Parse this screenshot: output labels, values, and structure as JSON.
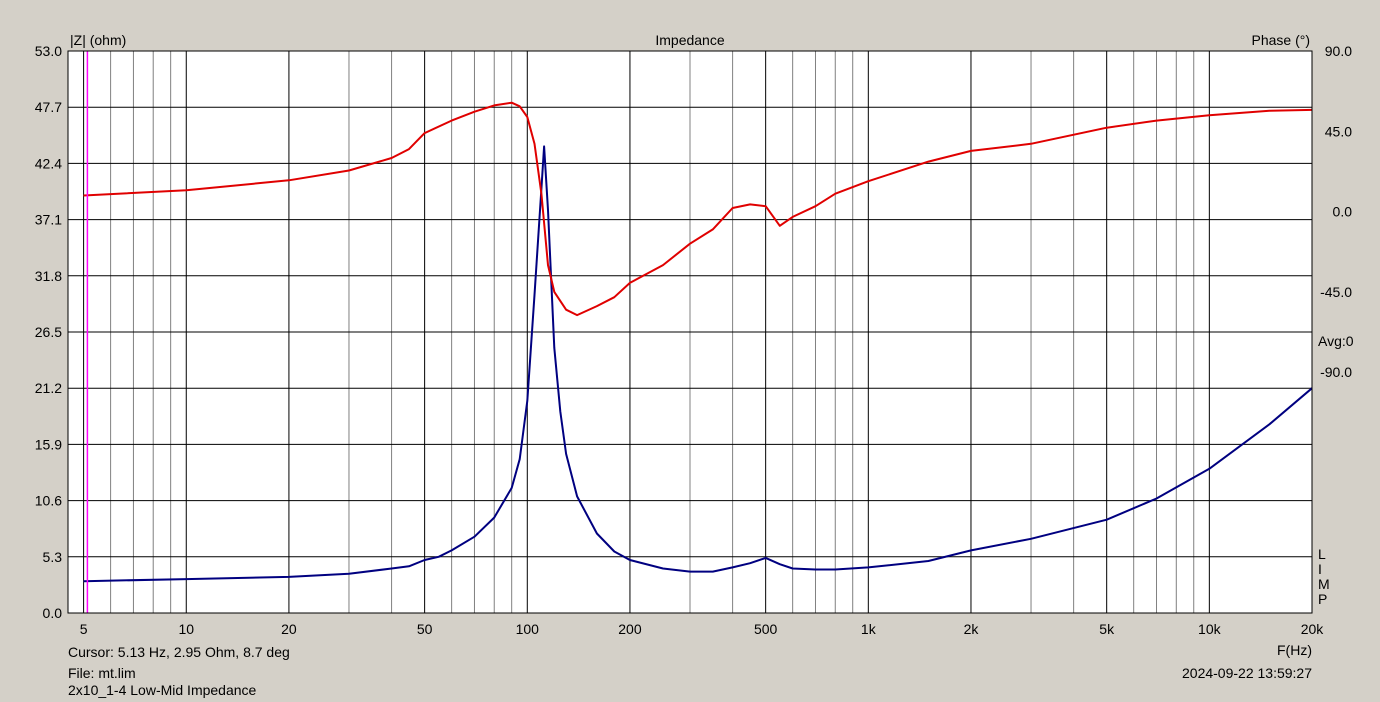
{
  "chart_data": {
    "type": "line",
    "title": "Impedance",
    "x_axis": {
      "label": "F(Hz)",
      "scale": "log",
      "range": [
        4.5,
        20000
      ],
      "ticks": [
        {
          "value": 5,
          "label": "5"
        },
        {
          "value": 10,
          "label": "10"
        },
        {
          "value": 20,
          "label": "20"
        },
        {
          "value": 50,
          "label": "50"
        },
        {
          "value": 100,
          "label": "100"
        },
        {
          "value": 200,
          "label": "200"
        },
        {
          "value": 500,
          "label": "500"
        },
        {
          "value": 1000,
          "label": "1k"
        },
        {
          "value": 2000,
          "label": "2k"
        },
        {
          "value": 5000,
          "label": "5k"
        },
        {
          "value": 10000,
          "label": "10k"
        },
        {
          "value": 20000,
          "label": "20k"
        }
      ]
    },
    "y_left": {
      "label": "|Z| (ohm)",
      "range": [
        0,
        53
      ],
      "ticks": [
        "0.0",
        "5.3",
        "10.6",
        "15.9",
        "21.2",
        "26.5",
        "31.8",
        "37.1",
        "42.4",
        "47.7",
        "53.0"
      ]
    },
    "y_right": {
      "label": "Phase (°)",
      "range": [
        -225,
        90
      ],
      "ticks": [
        "90.0",
        "45.0",
        "0.0",
        "-45.0",
        "-90.0"
      ]
    },
    "right_annotations": {
      "avg": "Avg:0",
      "lim_letters": [
        "L",
        "I",
        "M",
        "P"
      ]
    },
    "grid": true,
    "cursor_frequency": 5.13,
    "series": [
      {
        "name": "|Z|",
        "axis": "left",
        "color": "#000080",
        "x": [
          5,
          10,
          20,
          30,
          40,
          45,
          50,
          55,
          60,
          70,
          80,
          90,
          95,
          100,
          105,
          110,
          112,
          115,
          120,
          125,
          130,
          140,
          160,
          180,
          200,
          250,
          300,
          350,
          400,
          450,
          500,
          550,
          600,
          700,
          800,
          1000,
          1500,
          2000,
          3000,
          5000,
          7000,
          10000,
          15000,
          20000
        ],
        "y": [
          3.0,
          3.2,
          3.4,
          3.7,
          4.2,
          4.4,
          5.0,
          5.3,
          5.9,
          7.2,
          9.0,
          11.8,
          14.5,
          20.0,
          30.0,
          40.0,
          44.0,
          38.0,
          25.0,
          19.0,
          15.0,
          11.0,
          7.5,
          5.8,
          5.0,
          4.2,
          3.9,
          3.9,
          4.3,
          4.7,
          5.2,
          4.6,
          4.2,
          4.1,
          4.1,
          4.3,
          4.9,
          5.9,
          7.0,
          8.8,
          10.8,
          13.6,
          17.8,
          21.2
        ]
      },
      {
        "name": "Phase",
        "axis": "right",
        "color": "#e00000",
        "x": [
          5,
          10,
          20,
          30,
          40,
          45,
          50,
          60,
          70,
          80,
          90,
          95,
          100,
          105,
          110,
          115,
          120,
          130,
          140,
          160,
          180,
          200,
          250,
          300,
          350,
          400,
          450,
          500,
          550,
          600,
          700,
          800,
          1000,
          1500,
          2000,
          3000,
          5000,
          7000,
          10000,
          15000,
          20000
        ],
        "y": [
          9.0,
          12.0,
          17.5,
          23.0,
          30.0,
          35.0,
          44.0,
          51.0,
          56.0,
          59.5,
          61.0,
          59.0,
          53.0,
          38.0,
          10.0,
          -30.0,
          -45.0,
          -55.0,
          -58.0,
          -53.0,
          -48.0,
          -40.0,
          -30.0,
          -18.0,
          -10.0,
          2.0,
          4.0,
          3.0,
          -8.0,
          -3.0,
          3.0,
          10.0,
          17.0,
          28.0,
          34.0,
          38.0,
          47.0,
          51.0,
          54.0,
          56.5,
          57.0
        ]
      }
    ]
  },
  "info": {
    "cursor": "Cursor: 5.13 Hz, 2.95 Ohm, 8.7 deg",
    "file": "File: mt.lim",
    "description": "2x10_1-4 Low-Mid Impedance",
    "timestamp": "2024-09-22 13:59:27"
  },
  "colors": {
    "background": "#d4d0c8",
    "plot_background": "#ffffff",
    "grid": "#808080",
    "impedance": "#000080",
    "phase": "#e00000",
    "cursor": "#ff00ff"
  }
}
